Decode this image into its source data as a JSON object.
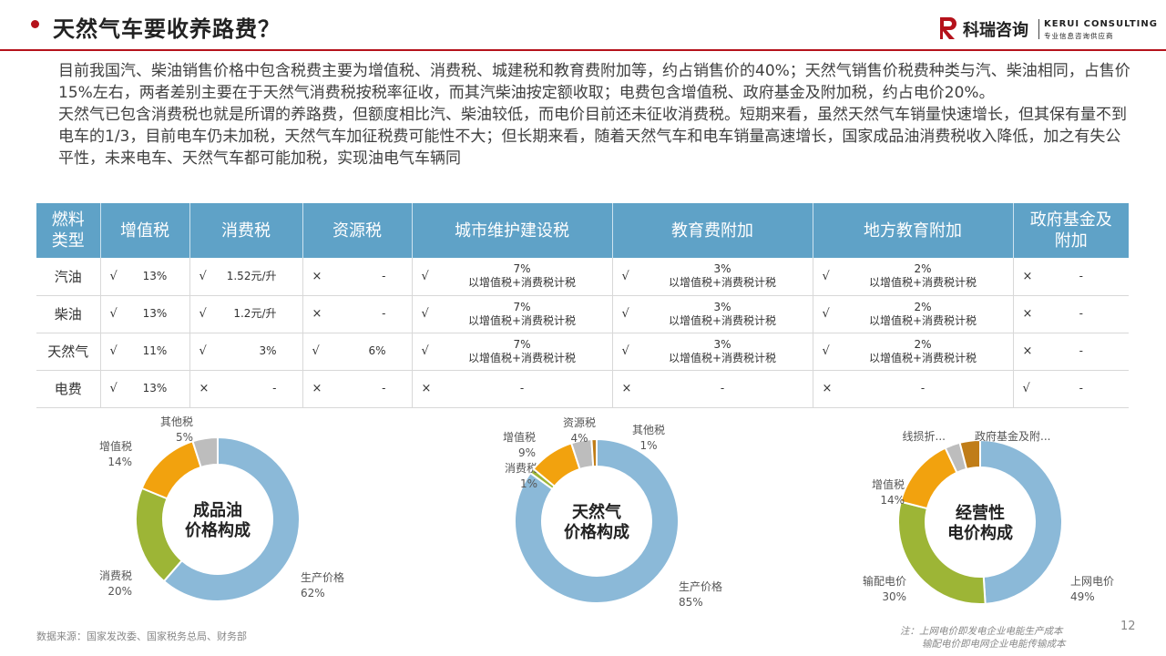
{
  "header": {
    "title": "天然气车要收养路费？",
    "logo_cn": "科瑞咨询",
    "logo_en": "KERUI CONSULTING",
    "logo_sub": "专业信息咨询供应商"
  },
  "body": {
    "para1": "目前我国汽、柴油销售价格中包含税费主要为增值税、消费税、城建税和教育费附加等，约占销售价的40%；天然气销售价税费种类与汽、柴油相同，占售价15%左右，两者差别主要在于天然气消费税按税率征收，而其汽柴油按定额收取；电费包含增值税、政府基金及附加税，约占电价20%。",
    "para2": "天然气已包含消费税也就是所谓的养路费，但额度相比汽、柴油较低，而电价目前还未征收消费税。短期来看，虽然天然气车销量快速增长，但其保有量不到电车的1/3，目前电车仍未加税，天然气车加征税费可能性不大；但长期来看，随着天然气车和电车销量高速增长，国家成品油消费税收入降低，加之有失公平性，未来电车、天然气车都可能加税，实现油电气车辆同"
  },
  "table": {
    "headers": [
      "燃料类型",
      "增值税",
      "消费税",
      "资源税",
      "城市维护建设税",
      "教育费附加",
      "地方教育附加",
      "政府基金及附加"
    ],
    "rows": [
      {
        "fuel": "汽油",
        "cells": [
          [
            "√",
            "13%"
          ],
          [
            "√",
            "1.52元/升"
          ],
          [
            "×",
            "-"
          ],
          [
            "√",
            "7%",
            "以增值税+消费税计税"
          ],
          [
            "√",
            "3%",
            "以增值税+消费税计税"
          ],
          [
            "√",
            "2%",
            "以增值税+消费税计税"
          ],
          [
            "×",
            "-"
          ]
        ]
      },
      {
        "fuel": "柴油",
        "cells": [
          [
            "√",
            "13%"
          ],
          [
            "√",
            "1.2元/升"
          ],
          [
            "×",
            "-"
          ],
          [
            "√",
            "7%",
            "以增值税+消费税计税"
          ],
          [
            "√",
            "3%",
            "以增值税+消费税计税"
          ],
          [
            "√",
            "2%",
            "以增值税+消费税计税"
          ],
          [
            "×",
            "-"
          ]
        ]
      },
      {
        "fuel": "天然气",
        "cells": [
          [
            "√",
            "11%"
          ],
          [
            "√",
            "3%"
          ],
          [
            "√",
            "6%"
          ],
          [
            "√",
            "7%",
            "以增值税+消费税计税"
          ],
          [
            "√",
            "3%",
            "以增值税+消费税计税"
          ],
          [
            "√",
            "2%",
            "以增值税+消费税计税"
          ],
          [
            "×",
            "-"
          ]
        ]
      },
      {
        "fuel": "电费",
        "cells": [
          [
            "√",
            "13%"
          ],
          [
            "×",
            "-"
          ],
          [
            "×",
            "-"
          ],
          [
            "×",
            "-"
          ],
          [
            "×",
            "-"
          ],
          [
            "×",
            "-"
          ],
          [
            "√",
            "-"
          ]
        ]
      }
    ]
  },
  "chart_data": [
    {
      "type": "pie",
      "center_title": [
        "成品油",
        "价格构成"
      ],
      "slices": [
        {
          "name": "生产价格",
          "value": 62,
          "label": "62%",
          "color": "#8bb9d8"
        },
        {
          "name": "消费税",
          "value": 20,
          "label": "20%",
          "color": "#9db536"
        },
        {
          "name": "增值税",
          "value": 14,
          "label": "14%",
          "color": "#f2a20e"
        },
        {
          "name": "其他税",
          "value": 5,
          "label": "5%",
          "color": "#bdbdbd"
        }
      ]
    },
    {
      "type": "pie",
      "center_title": [
        "天然气",
        "价格构成"
      ],
      "slices": [
        {
          "name": "生产价格",
          "value": 85,
          "label": "85%",
          "color": "#8bb9d8"
        },
        {
          "name": "消费税",
          "value": 1,
          "label": "1%",
          "color": "#9db536"
        },
        {
          "name": "增值税",
          "value": 9,
          "label": "9%",
          "color": "#f2a20e"
        },
        {
          "name": "资源税",
          "value": 4,
          "label": "4%",
          "color": "#bdbdbd"
        },
        {
          "name": "其他税",
          "value": 1,
          "label": "1%",
          "color": "#c07d18"
        }
      ]
    },
    {
      "type": "pie",
      "center_title": [
        "经营性",
        "电价构成"
      ],
      "slices": [
        {
          "name": "上网电价",
          "value": 49,
          "label": "49%",
          "color": "#8bb9d8"
        },
        {
          "name": "输配电价",
          "value": 30,
          "label": "30%",
          "color": "#9db536"
        },
        {
          "name": "增值税",
          "value": 14,
          "label": "14%",
          "color": "#f2a20e"
        },
        {
          "name": "线损折...",
          "value": 3,
          "label": "",
          "color": "#bdbdbd"
        },
        {
          "name": "政府基金及附...",
          "value": 4,
          "label": "",
          "color": "#c07d18"
        }
      ]
    }
  ],
  "footer": {
    "source": "数据来源：国家发改委、国家税务总局、财务部",
    "note_line1": "注：上网电价即发电企业电能生产成本",
    "note_line2": "输配电价即电网企业电能传输成本",
    "page": "12"
  }
}
